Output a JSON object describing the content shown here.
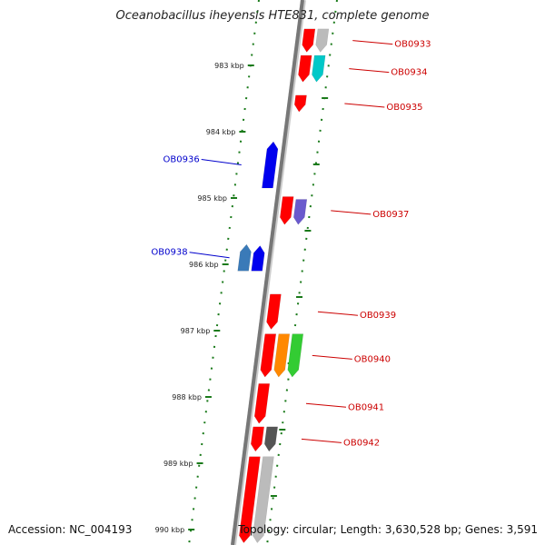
{
  "title": "Oceanobacillus iheyensis HTE831, complete genome",
  "footer": {
    "accession": "Accession: NC_004193",
    "topology": "Topology: circular; Length: 3,630,528 bp; Genes: 3,591"
  },
  "colors": {
    "axis": "#777777",
    "ticks": "#1a7a1a",
    "forward_label": "#cc0000",
    "reverse_label": "#0000cc",
    "gene_red": "#ff0000",
    "gene_blue": "#0000ee",
    "gene_steelblue": "#3a7ab8",
    "gene_cyan": "#00c8c8",
    "gene_purple": "#6a5acd",
    "gene_orange": "#ff8800",
    "gene_green": "#33cc33",
    "gene_darkgray": "#555555",
    "gene_lightgray": "#bbbbbb"
  },
  "ruler": {
    "ticks": [
      {
        "label": "983 kbp",
        "kbp": 983
      },
      {
        "label": "984 kbp",
        "kbp": 984
      },
      {
        "label": "985 kbp",
        "kbp": 985
      },
      {
        "label": "986 kbp",
        "kbp": 986
      },
      {
        "label": "987 kbp",
        "kbp": 987
      },
      {
        "label": "988 kbp",
        "kbp": 988
      },
      {
        "label": "989 kbp",
        "kbp": 989
      },
      {
        "label": "990 kbp",
        "kbp": 990
      }
    ]
  },
  "genes": [
    {
      "strand": "+",
      "lane": 1,
      "start": 982.45,
      "end": 982.8,
      "color": "gene_red",
      "label": "OB0933"
    },
    {
      "strand": "+",
      "lane": 2,
      "start": 982.45,
      "end": 982.8,
      "color": "gene_lightgray"
    },
    {
      "strand": "+",
      "lane": 1,
      "start": 982.85,
      "end": 983.25,
      "color": "gene_red",
      "label": "OB0934"
    },
    {
      "strand": "+",
      "lane": 2,
      "start": 982.85,
      "end": 983.25,
      "color": "gene_cyan"
    },
    {
      "strand": "+",
      "lane": 1,
      "start": 983.45,
      "end": 983.7,
      "color": "gene_red",
      "label": "OB0935"
    },
    {
      "strand": "-",
      "lane": 1,
      "start": 984.15,
      "end": 984.85,
      "color": "gene_blue",
      "label": "OB0936"
    },
    {
      "strand": "+",
      "lane": 1,
      "start": 984.98,
      "end": 985.4,
      "color": "gene_red",
      "label": "OB0937"
    },
    {
      "strand": "+",
      "lane": 2,
      "start": 985.02,
      "end": 985.4,
      "color": "gene_purple"
    },
    {
      "strand": "-",
      "lane": 2,
      "start": 985.7,
      "end": 986.1,
      "color": "gene_steelblue",
      "label": "OB0938"
    },
    {
      "strand": "-",
      "lane": 1,
      "start": 985.72,
      "end": 986.1,
      "color": "gene_blue"
    },
    {
      "strand": "+",
      "lane": 1,
      "start": 986.45,
      "end": 986.98,
      "color": "gene_red",
      "label": "OB0939"
    },
    {
      "strand": "+",
      "lane": 1,
      "start": 987.05,
      "end": 987.7,
      "color": "gene_red",
      "label": "OB0940"
    },
    {
      "strand": "+",
      "lane": 2,
      "start": 987.05,
      "end": 987.7,
      "color": "gene_orange"
    },
    {
      "strand": "+",
      "lane": 3,
      "start": 987.05,
      "end": 987.7,
      "color": "gene_green"
    },
    {
      "strand": "+",
      "lane": 1,
      "start": 987.8,
      "end": 988.4,
      "color": "gene_red",
      "label": "OB0941"
    },
    {
      "strand": "+",
      "lane": 1,
      "start": 988.45,
      "end": 988.82,
      "color": "gene_red",
      "label": "OB0942"
    },
    {
      "strand": "+",
      "lane": 2,
      "start": 988.45,
      "end": 988.82,
      "color": "gene_darkgray"
    },
    {
      "strand": "+",
      "lane": 1,
      "start": 988.9,
      "end": 990.2,
      "color": "gene_red"
    },
    {
      "strand": "+",
      "lane": 2,
      "start": 988.9,
      "end": 990.2,
      "color": "gene_lightgray"
    }
  ]
}
